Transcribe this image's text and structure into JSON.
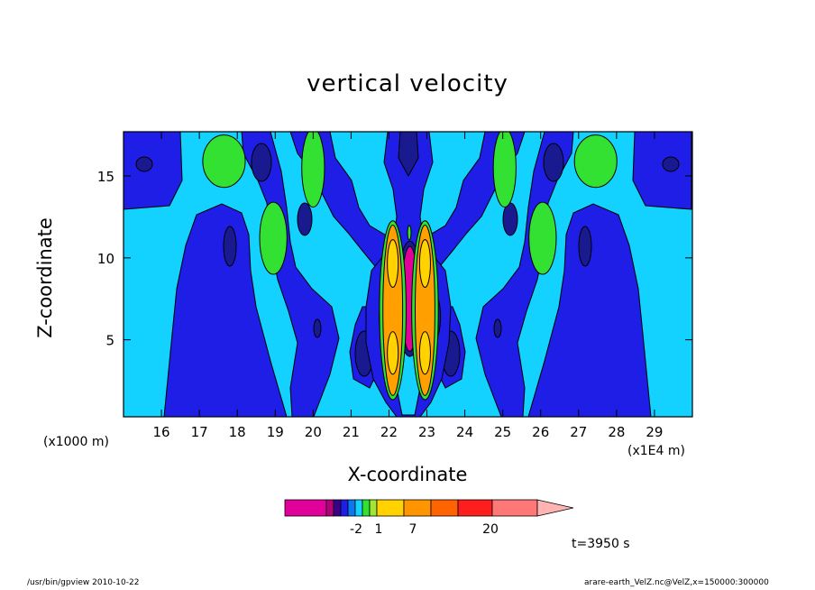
{
  "chart_data": {
    "type": "contour",
    "title": "vertical velocity",
    "xlabel": "X-coordinate",
    "ylabel": "Z-coordinate",
    "x_scale_label": "(x1000 m)",
    "x_scale_label_right": "(x1E4 m)",
    "x_ticks": [
      16,
      17,
      18,
      19,
      20,
      21,
      22,
      23,
      24,
      25,
      26,
      27,
      28,
      29
    ],
    "y_ticks": [
      5,
      10,
      15
    ],
    "xlim": [
      15,
      30
    ],
    "ylim": [
      0.3,
      17.7
    ],
    "grid": false,
    "features": [
      {
        "level": "lowest",
        "x": 22.55,
        "z": 7.5,
        "sx": 0.11,
        "sz": 1.6
      },
      {
        "level": "lowest",
        "x": 21.95,
        "z": 6.4,
        "sx": 0.07,
        "sz": 0.7
      },
      {
        "level": "lowest",
        "x": 23.15,
        "z": 6.4,
        "sx": 0.07,
        "sz": 0.7
      },
      {
        "level": "highest",
        "x": 22.1,
        "z": 6.8,
        "sx": 0.13,
        "sz": 2.6
      },
      {
        "level": "highest",
        "x": 22.95,
        "z": 6.8,
        "sx": 0.13,
        "sz": 2.6
      },
      {
        "level": "positive",
        "x": 17.65,
        "z": 15.9,
        "sx": 0.28,
        "sz": 0.8
      },
      {
        "level": "positive",
        "x": 27.45,
        "z": 15.9,
        "sx": 0.28,
        "sz": 0.8
      },
      {
        "level": "positive",
        "x": 18.95,
        "z": 11.2,
        "sx": 0.18,
        "sz": 1.1
      },
      {
        "level": "positive",
        "x": 26.05,
        "z": 11.2,
        "sx": 0.18,
        "sz": 1.1
      },
      {
        "level": "positive",
        "x": 20.0,
        "z": 15.5,
        "sx": 0.15,
        "sz": 1.2
      },
      {
        "level": "positive",
        "x": 25.05,
        "z": 15.5,
        "sx": 0.15,
        "sz": 1.2
      }
    ],
    "colorbar": {
      "labels": [
        "-2",
        "1",
        "7",
        "20"
      ],
      "colors": [
        "#e0009a",
        "#b4007a",
        "#3a0088",
        "#1e1ee6",
        "#0a78f0",
        "#14d2ff",
        "#32e132",
        "#a0e632",
        "#ffd200",
        "#ff9600",
        "#ff6400",
        "#ff1e1e",
        "#ff7878",
        "#ffb4b4"
      ]
    },
    "colors": {
      "lowest": "#e0009a",
      "low": "#b4007a",
      "dark_blue": "#1e1ee6",
      "navy": "#1a1a90",
      "cyan": "#14d2ff",
      "positive": "#32e132",
      "highest": "#ffa000",
      "yellow": "#ffd200"
    }
  },
  "time_label": "t=3950 s",
  "footer_left": "/usr/bin/gpview   2010-10-22",
  "footer_right": "arare-earth_VelZ.nc@VelZ,x=150000:300000"
}
